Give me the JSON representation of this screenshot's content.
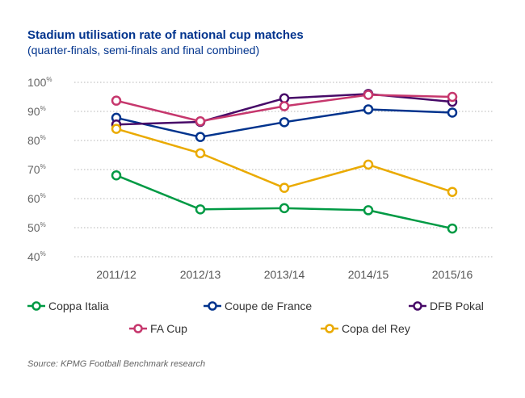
{
  "chart_data": {
    "type": "line",
    "title": "Stadium utilisation rate of national cup matches",
    "subtitle": "(quarter-finals, semi-finals and final combined)",
    "xlabel": "",
    "ylabel": "",
    "ylim": [
      40,
      100
    ],
    "y_ticks": [
      {
        "value": 100,
        "label": "100",
        "suffix": "%"
      },
      {
        "value": 90,
        "label": "90",
        "suffix": "%"
      },
      {
        "value": 80,
        "label": "80",
        "suffix": "%"
      },
      {
        "value": 70,
        "label": "70",
        "suffix": "%"
      },
      {
        "value": 60,
        "label": "60",
        "suffix": "%"
      },
      {
        "value": 50,
        "label": "50",
        "suffix": "%"
      },
      {
        "value": 40,
        "label": "40",
        "suffix": "%"
      }
    ],
    "categories": [
      "2011/12",
      "2012/13",
      "2013/14",
      "2014/15",
      "2015/16"
    ],
    "series": [
      {
        "name": "Coppa Italia",
        "color": "#009A44",
        "values": [
          68,
          56.3,
          56.7,
          56,
          49.7
        ]
      },
      {
        "name": "Coupe de France",
        "color": "#00338D",
        "values": [
          87.8,
          81.2,
          86.3,
          90.7,
          89.6
        ]
      },
      {
        "name": "DFB Pokal",
        "color": "#470A68",
        "values": [
          85.5,
          86.4,
          94.5,
          96,
          93.3
        ]
      },
      {
        "name": "FA Cup",
        "color": "#C6376D",
        "values": [
          93.7,
          86.6,
          91.8,
          95.7,
          95
        ]
      },
      {
        "name": "Copa del Rey",
        "color": "#EAAA00",
        "values": [
          84,
          75.6,
          63.7,
          71.7,
          62.3
        ]
      }
    ],
    "grid": "horizontal-dotted",
    "legend_position": "bottom"
  },
  "source_text": "Source:  KPMG Football Benchmark research"
}
